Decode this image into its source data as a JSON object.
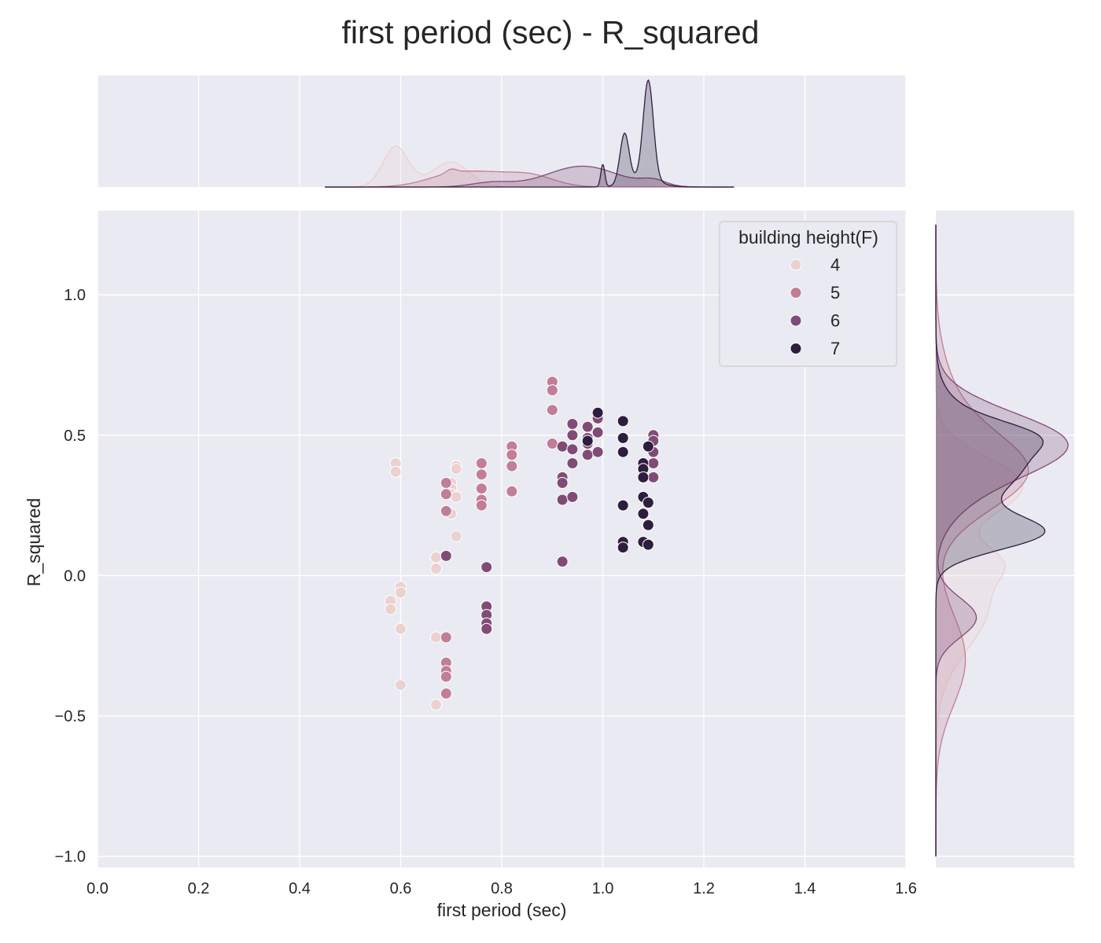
{
  "chart_data": {
    "type": "scatter",
    "title": "first period (sec) - R_squared",
    "xlabel": "first period (sec)",
    "ylabel": "R_squared",
    "xlim": [
      0.0,
      1.6
    ],
    "ylim": [
      -1.04,
      1.3
    ],
    "x_ticks": [
      "0.0",
      "0.2",
      "0.4",
      "0.6",
      "0.8",
      "1.0",
      "1.2",
      "1.4",
      "1.6"
    ],
    "y_ticks": [
      "−1.0",
      "−0.5",
      "0.0",
      "0.5",
      "1.0"
    ],
    "grid": true,
    "legend": {
      "title": "building height(F)",
      "placement": "upper right"
    },
    "series": [
      {
        "name": "4",
        "color": "#ebd1cf",
        "points": [
          [
            0.59,
            0.4
          ],
          [
            0.59,
            0.37
          ],
          [
            0.6,
            -0.04
          ],
          [
            0.6,
            -0.06
          ],
          [
            0.58,
            -0.09
          ],
          [
            0.58,
            -0.12
          ],
          [
            0.6,
            -0.19
          ],
          [
            0.6,
            -0.39
          ],
          [
            0.67,
            0.065
          ],
          [
            0.67,
            0.025
          ],
          [
            0.67,
            -0.22
          ],
          [
            0.67,
            -0.46
          ],
          [
            0.7,
            0.33
          ],
          [
            0.7,
            0.31
          ],
          [
            0.7,
            0.29
          ],
          [
            0.7,
            0.22
          ],
          [
            0.71,
            0.39
          ],
          [
            0.71,
            0.38
          ],
          [
            0.71,
            0.28
          ],
          [
            0.71,
            0.14
          ]
        ]
      },
      {
        "name": "5",
        "color": "#c17e96",
        "points": [
          [
            0.69,
            0.33
          ],
          [
            0.69,
            0.29
          ],
          [
            0.69,
            0.23
          ],
          [
            0.69,
            -0.22
          ],
          [
            0.69,
            -0.31
          ],
          [
            0.69,
            -0.34
          ],
          [
            0.69,
            -0.36
          ],
          [
            0.69,
            -0.42
          ],
          [
            0.76,
            0.4
          ],
          [
            0.76,
            0.36
          ],
          [
            0.76,
            0.31
          ],
          [
            0.76,
            0.27
          ],
          [
            0.76,
            0.25
          ],
          [
            0.82,
            0.46
          ],
          [
            0.82,
            0.43
          ],
          [
            0.82,
            0.39
          ],
          [
            0.82,
            0.3
          ],
          [
            0.9,
            0.69
          ],
          [
            0.9,
            0.66
          ],
          [
            0.9,
            0.59
          ],
          [
            0.9,
            0.47
          ]
        ]
      },
      {
        "name": "6",
        "color": "#804c77",
        "points": [
          [
            0.69,
            0.07
          ],
          [
            0.77,
            0.03
          ],
          [
            0.77,
            -0.11
          ],
          [
            0.77,
            -0.14
          ],
          [
            0.77,
            -0.17
          ],
          [
            0.77,
            -0.19
          ],
          [
            0.92,
            0.46
          ],
          [
            0.92,
            0.35
          ],
          [
            0.92,
            0.33
          ],
          [
            0.92,
            0.27
          ],
          [
            0.92,
            0.05
          ],
          [
            0.94,
            0.54
          ],
          [
            0.94,
            0.5
          ],
          [
            0.94,
            0.45
          ],
          [
            0.94,
            0.4
          ],
          [
            0.94,
            0.28
          ],
          [
            0.97,
            0.53
          ],
          [
            0.97,
            0.49
          ],
          [
            0.97,
            0.47
          ],
          [
            0.97,
            0.43
          ],
          [
            0.99,
            0.56
          ],
          [
            0.99,
            0.51
          ],
          [
            0.99,
            0.44
          ],
          [
            1.1,
            0.5
          ],
          [
            1.1,
            0.48
          ],
          [
            1.1,
            0.44
          ],
          [
            1.1,
            0.4
          ],
          [
            1.1,
            0.35
          ]
        ]
      },
      {
        "name": "7",
        "color": "#2d1e3e",
        "points": [
          [
            0.97,
            0.48
          ],
          [
            0.99,
            0.58
          ],
          [
            1.04,
            0.55
          ],
          [
            1.04,
            0.49
          ],
          [
            1.04,
            0.44
          ],
          [
            1.04,
            0.25
          ],
          [
            1.04,
            0.12
          ],
          [
            1.04,
            0.1
          ],
          [
            1.08,
            0.4
          ],
          [
            1.08,
            0.38
          ],
          [
            1.08,
            0.35
          ],
          [
            1.08,
            0.28
          ],
          [
            1.08,
            0.22
          ],
          [
            1.08,
            0.12
          ],
          [
            1.09,
            0.46
          ],
          [
            1.09,
            0.26
          ],
          [
            1.09,
            0.18
          ],
          [
            1.09,
            0.11
          ]
        ]
      }
    ],
    "marginal_x": {
      "series": [
        {
          "name": "4",
          "components": [
            [
              0.59,
              0.025,
              0.55
            ],
            [
              0.7,
              0.035,
              0.45
            ],
            [
              0.66,
              0.06,
              0.08
            ]
          ]
        },
        {
          "name": "5",
          "components": [
            [
              0.72,
              0.06,
              0.5
            ],
            [
              0.85,
              0.05,
              0.35
            ],
            [
              0.7,
              0.01,
              0.02
            ],
            [
              0.78,
              0.03,
              0.03
            ]
          ]
        },
        {
          "name": "6",
          "components": [
            [
              0.96,
              0.07,
              0.8
            ],
            [
              0.78,
              0.04,
              0.1
            ],
            [
              1.1,
              0.025,
              0.08
            ],
            [
              0.94,
              0.09,
              0.02
            ]
          ]
        },
        {
          "name": "7",
          "components": [
            [
              1.09,
              0.01,
              0.55
            ],
            [
              1.043,
              0.009,
              0.25
            ],
            [
              1.0,
              0.004,
              0.05
            ],
            [
              1.08,
              0.03,
              0.15
            ]
          ]
        }
      ]
    },
    "marginal_y": {
      "series": [
        {
          "name": "4",
          "components": [
            [
              0.32,
              0.1,
              0.45
            ],
            [
              -0.1,
              0.16,
              0.45
            ],
            [
              0.05,
              0.06,
              0.1
            ]
          ]
        },
        {
          "name": "5",
          "components": [
            [
              0.36,
              0.13,
              0.55
            ],
            [
              -0.3,
              0.16,
              0.25
            ],
            [
              0.55,
              0.18,
              0.2
            ]
          ]
        },
        {
          "name": "6",
          "components": [
            [
              0.47,
              0.11,
              0.75
            ],
            [
              0.28,
              0.1,
              0.1
            ],
            [
              -0.15,
              0.07,
              0.15
            ]
          ]
        },
        {
          "name": "7",
          "components": [
            [
              0.4,
              0.13,
              0.6
            ],
            [
              0.15,
              0.06,
              0.3
            ],
            [
              0.5,
              0.05,
              0.1
            ]
          ]
        }
      ]
    }
  }
}
